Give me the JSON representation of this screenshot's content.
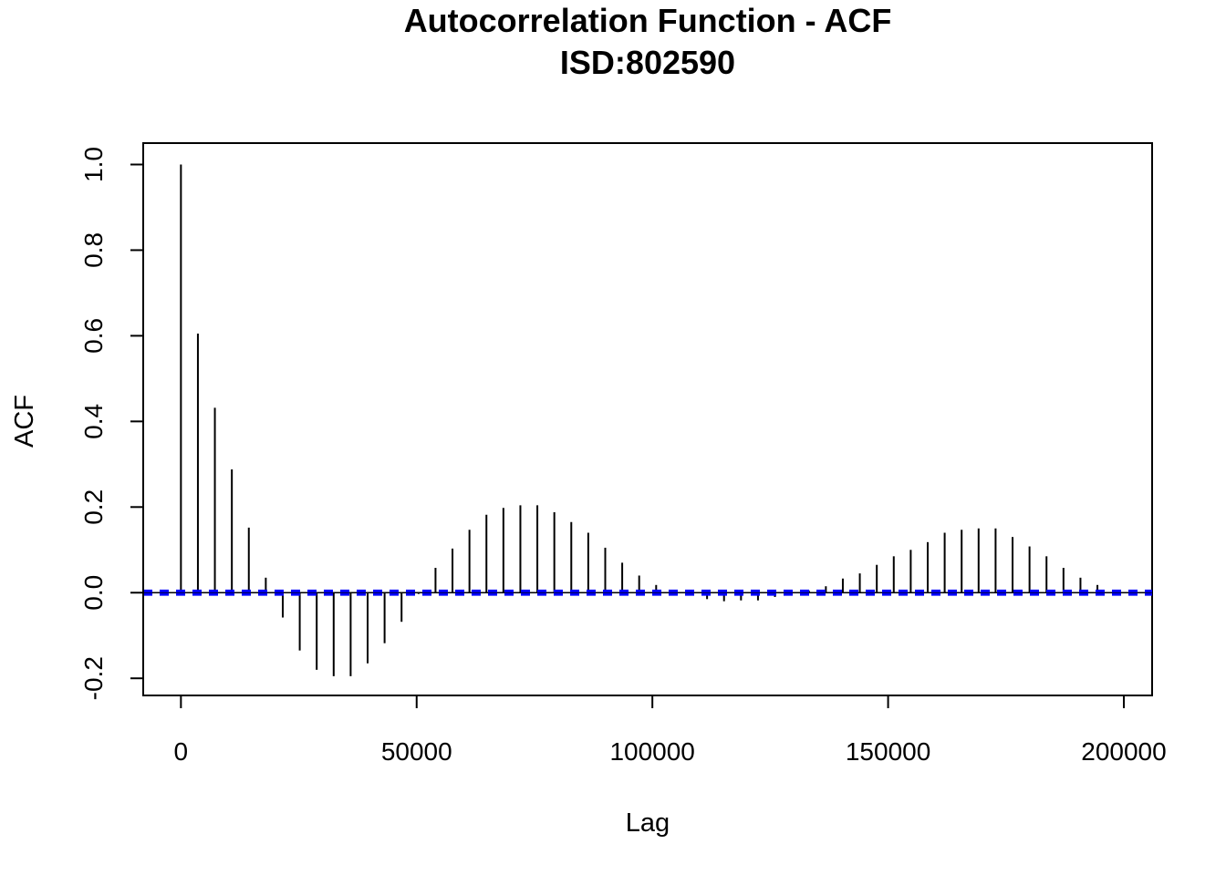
{
  "chart_data": {
    "type": "bar",
    "title": "Autocorrelation Function - ACF",
    "subtitle": "ISD:802590",
    "xlabel": "Lag",
    "ylabel": "ACF",
    "xlim": [
      -8000,
      206000
    ],
    "ylim": [
      -0.24,
      1.05
    ],
    "x_ticks": [
      0,
      50000,
      100000,
      150000,
      200000
    ],
    "x_tick_labels": [
      "0",
      "50000",
      "100000",
      "150000",
      "200000"
    ],
    "y_ticks": [
      -0.2,
      0.0,
      0.2,
      0.4,
      0.6,
      0.8,
      1.0
    ],
    "y_tick_labels": [
      "-0.2",
      "0.0",
      "0.2",
      "0.4",
      "0.6",
      "0.8",
      "1.0"
    ],
    "grid": false,
    "confidence_band": 0.004,
    "confidence_color": "#0000ff",
    "bar_color": "#000000",
    "series": [
      {
        "lags": [
          0,
          3600,
          7200,
          10800,
          14400,
          18000,
          21600,
          25200,
          28800,
          32400,
          36000,
          39600,
          43200,
          46800,
          50400,
          54000,
          57600,
          61200,
          64800,
          68400,
          72000,
          75600,
          79200,
          82800,
          86400,
          90000,
          93600,
          97200,
          100800,
          104400,
          108000,
          111600,
          115200,
          118800,
          122400,
          126000,
          129600,
          133200,
          136800,
          140400,
          144000,
          147600,
          151200,
          154800,
          158400,
          162000,
          165600,
          169200,
          172800,
          176400,
          180000,
          183600,
          187200,
          190800,
          194400,
          198000,
          201600,
          205200
        ],
        "values": [
          1.0,
          0.605,
          0.432,
          0.288,
          0.152,
          0.035,
          -0.058,
          -0.135,
          -0.18,
          -0.195,
          -0.195,
          -0.165,
          -0.118,
          -0.068,
          -0.003,
          0.058,
          0.103,
          0.147,
          0.182,
          0.198,
          0.204,
          0.204,
          0.188,
          0.165,
          0.14,
          0.105,
          0.07,
          0.04,
          0.018,
          0.005,
          -0.005,
          -0.015,
          -0.02,
          -0.018,
          -0.018,
          -0.01,
          0.0,
          0.005,
          0.015,
          0.033,
          0.045,
          0.065,
          0.085,
          0.1,
          0.118,
          0.14,
          0.147,
          0.15,
          0.15,
          0.13,
          0.108,
          0.085,
          0.058,
          0.035,
          0.018,
          0.0,
          -0.003,
          0.0
        ]
      }
    ]
  }
}
